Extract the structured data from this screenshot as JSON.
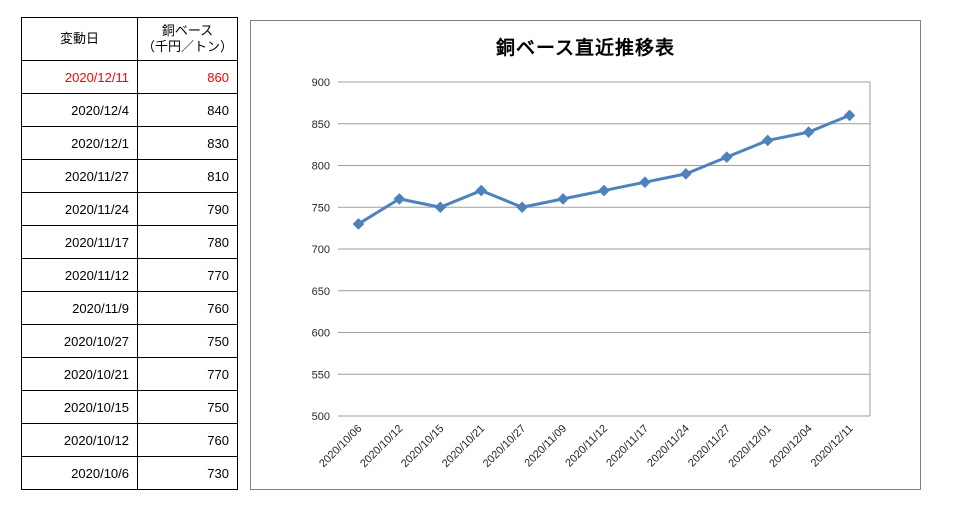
{
  "table": {
    "headers": {
      "date": "変動日",
      "price_line1": "銅ベース",
      "price_line2": "（千円／トン）"
    },
    "highlight_color": "#FF0000",
    "rows": [
      {
        "date": "2020/12/11",
        "value": 860,
        "highlight": true
      },
      {
        "date": "2020/12/4",
        "value": 840,
        "highlight": false
      },
      {
        "date": "2020/12/1",
        "value": 830,
        "highlight": false
      },
      {
        "date": "2020/11/27",
        "value": 810,
        "highlight": false
      },
      {
        "date": "2020/11/24",
        "value": 790,
        "highlight": false
      },
      {
        "date": "2020/11/17",
        "value": 780,
        "highlight": false
      },
      {
        "date": "2020/11/12",
        "value": 770,
        "highlight": false
      },
      {
        "date": "2020/11/9",
        "value": 760,
        "highlight": false
      },
      {
        "date": "2020/10/27",
        "value": 750,
        "highlight": false
      },
      {
        "date": "2020/10/21",
        "value": 770,
        "highlight": false
      },
      {
        "date": "2020/10/15",
        "value": 750,
        "highlight": false
      },
      {
        "date": "2020/10/12",
        "value": 760,
        "highlight": false
      },
      {
        "date": "2020/10/6",
        "value": 730,
        "highlight": false
      }
    ]
  },
  "chart_data": {
    "type": "line",
    "title": "銅ベース直近推移表",
    "categories": [
      "2020/10/06",
      "2020/10/12",
      "2020/10/15",
      "2020/10/21",
      "2020/10/27",
      "2020/11/09",
      "2020/11/12",
      "2020/11/17",
      "2020/11/24",
      "2020/11/27",
      "2020/12/01",
      "2020/12/04",
      "2020/12/11"
    ],
    "values": [
      730,
      760,
      750,
      770,
      750,
      760,
      770,
      780,
      790,
      810,
      830,
      840,
      860
    ],
    "xlabel": "",
    "ylabel": "",
    "ylim": [
      500,
      900
    ],
    "ytick_step": 50,
    "grid": true,
    "legend": "none",
    "marker": "diamond",
    "line_color": "#4F81BD",
    "grid_color": "#9E9E9E",
    "axis_color": "#9E9E9E",
    "tick_color": "#262626"
  }
}
